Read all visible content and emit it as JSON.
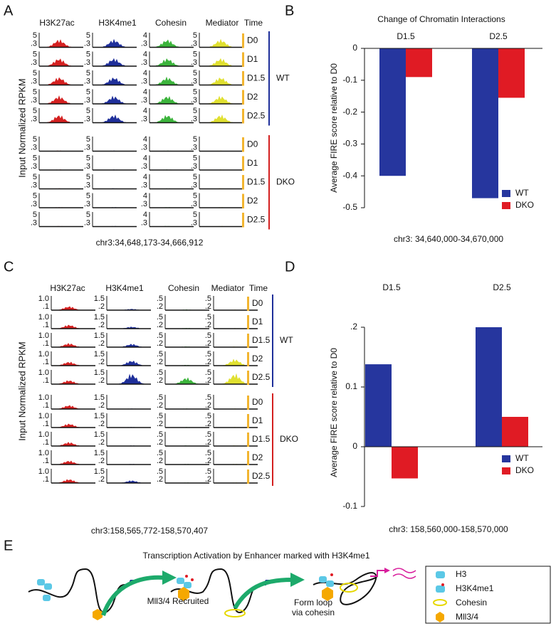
{
  "panel_a": {
    "label": "A",
    "y_label": "Input Normalized RPKM",
    "time_header": "Time",
    "columns": [
      {
        "name": "H3K27ac",
        "scale": [
          "5",
          ".3"
        ],
        "color": "#d42020"
      },
      {
        "name": "H3K4me1",
        "scale": [
          "5",
          ".3"
        ],
        "color": "#1f2f9a"
      },
      {
        "name": "Cohesin",
        "scale": [
          "4",
          ".3"
        ],
        "color": "#3cb43c"
      },
      {
        "name": "Mediator",
        "scale": [
          "5",
          ".3"
        ],
        "color": "#e0e030"
      }
    ],
    "times": [
      "D0",
      "D1",
      "D1.5",
      "D2",
      "D2.5"
    ],
    "groups": [
      "WT",
      "DKO"
    ],
    "region": "chr3:34,648,173-34,666,912"
  },
  "panel_c": {
    "label": "C",
    "y_label": "Input Normalized RPKM",
    "time_header": "Time",
    "columns": [
      {
        "name": "H3K27ac",
        "scale": [
          "1.0",
          ".1"
        ],
        "color": "#d42020"
      },
      {
        "name": "H3K4me1",
        "scale": [
          "1.5",
          ".2"
        ],
        "color": "#1f2f9a"
      },
      {
        "name": "Cohesin",
        "scale": [
          ".5",
          ".2"
        ],
        "color": "#3cb43c"
      },
      {
        "name": "Mediator",
        "scale": [
          ".5",
          ".2"
        ],
        "color": "#e0e030"
      }
    ],
    "times": [
      "D0",
      "D1",
      "D1.5",
      "D2",
      "D2.5"
    ],
    "groups": [
      "WT",
      "DKO"
    ],
    "region": "chr3:158,565,772-158,570,407"
  },
  "chart_data": [
    {
      "type": "bar",
      "label": "B",
      "title": "Change of Chromatin Interactions",
      "y_label": "Average FIRE score relative to D0",
      "categories": [
        "D1.5",
        "D2.5"
      ],
      "series": [
        {
          "name": "WT",
          "color": "#26369e",
          "values": [
            -0.4,
            -0.47
          ]
        },
        {
          "name": "DKO",
          "color": "#e01b24",
          "values": [
            -0.09,
            -0.155
          ]
        }
      ],
      "ylim": [
        -0.5,
        0
      ],
      "yticks": [
        0,
        -0.1,
        -0.2,
        -0.3,
        -0.4,
        -0.5
      ],
      "legend": "lower right",
      "note": "chr3: 34,640,000-34,670,000"
    },
    {
      "type": "bar",
      "label": "D",
      "y_label": "Average FIRE score relative to D0",
      "categories": [
        "D1.5",
        "D2.5"
      ],
      "series": [
        {
          "name": "WT",
          "color": "#26369e",
          "values": [
            0.138,
            0.2
          ]
        },
        {
          "name": "DKO",
          "color": "#e01b24",
          "values": [
            -0.053,
            0.05
          ]
        }
      ],
      "ylim": [
        -0.1,
        0.2
      ],
      "yticks": [
        {
          "value": 0.2,
          "label": ".2"
        },
        0.1,
        0,
        -0.1
      ],
      "legend": "lower right",
      "note": "chr3: 158,560,000-158,570,000"
    }
  ],
  "panel_e": {
    "label": "E",
    "title": "Transcription Activation by Enhancer marked with H3K4me1",
    "step1": "Mll3/4 Recruited",
    "step2": [
      "Form loop",
      "via cohesin"
    ],
    "legend": [
      "H3",
      "H3K4me1",
      "Cohesin",
      "Mll3/4"
    ]
  }
}
